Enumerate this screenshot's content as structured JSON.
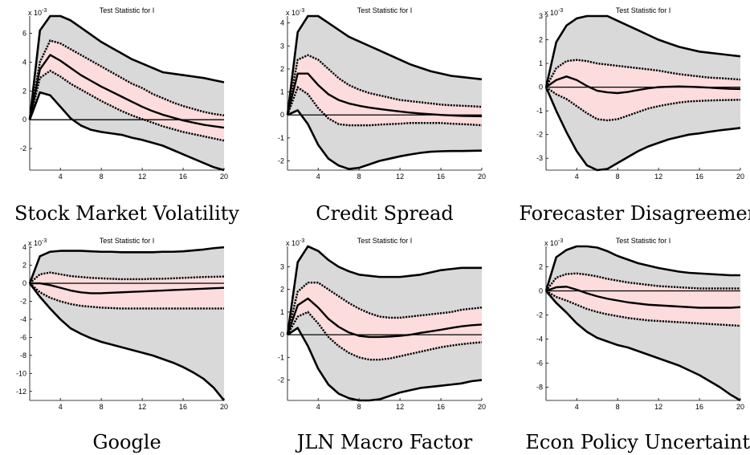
{
  "chart_data": [
    {
      "type": "line",
      "title": "Test Statistic for I",
      "caption": "Stock Market Volatility",
      "scale_label": "x 10",
      "scale_exp": "-3",
      "x": [
        1,
        2,
        3,
        4,
        5,
        6,
        7,
        8,
        9,
        10,
        11,
        12,
        13,
        14,
        15,
        16,
        17,
        18,
        19,
        20
      ],
      "xticks": [
        4,
        8,
        12,
        16,
        20
      ],
      "xlim": [
        1,
        20
      ],
      "yticks": [
        -2,
        0,
        2,
        4,
        6
      ],
      "ylim": [
        -3.5,
        7.2
      ],
      "series": [
        {
          "role": "outer_upper",
          "values": [
            0,
            6.2,
            7.2,
            7.2,
            6.9,
            6.4,
            5.9,
            5.4,
            5.0,
            4.6,
            4.2,
            3.9,
            3.6,
            3.3,
            3.2,
            3.1,
            3.0,
            2.9,
            2.75,
            2.6
          ]
        },
        {
          "role": "inner_upper",
          "values": [
            0,
            4.0,
            5.5,
            5.3,
            4.9,
            4.5,
            4.1,
            3.7,
            3.3,
            2.9,
            2.5,
            2.2,
            1.8,
            1.5,
            1.2,
            0.95,
            0.75,
            0.55,
            0.4,
            0.3
          ]
        },
        {
          "role": "median",
          "values": [
            0,
            3.5,
            4.5,
            4.1,
            3.6,
            3.1,
            2.7,
            2.3,
            1.95,
            1.6,
            1.25,
            0.9,
            0.6,
            0.35,
            0.15,
            -0.05,
            -0.2,
            -0.35,
            -0.45,
            -0.55
          ]
        },
        {
          "role": "inner_lower",
          "values": [
            0,
            2.9,
            3.4,
            3.0,
            2.5,
            2.1,
            1.7,
            1.3,
            0.95,
            0.6,
            0.3,
            0.05,
            -0.2,
            -0.45,
            -0.65,
            -0.85,
            -1.0,
            -1.15,
            -1.3,
            -1.45
          ]
        },
        {
          "role": "outer_lower",
          "values": [
            0,
            1.9,
            1.7,
            0.9,
            0.1,
            -0.4,
            -0.7,
            -0.85,
            -0.95,
            -1.05,
            -1.25,
            -1.4,
            -1.6,
            -1.8,
            -2.1,
            -2.4,
            -2.7,
            -3.0,
            -3.3,
            -3.5
          ]
        }
      ]
    },
    {
      "type": "line",
      "title": "Test Statistic for I",
      "caption": "Credit Spread",
      "scale_label": "x 10",
      "scale_exp": "-3",
      "x": [
        1,
        2,
        3,
        4,
        5,
        6,
        7,
        8,
        9,
        10,
        11,
        12,
        13,
        14,
        15,
        16,
        17,
        18,
        19,
        20
      ],
      "xticks": [
        4,
        8,
        12,
        16,
        20
      ],
      "xlim": [
        1,
        20
      ],
      "yticks": [
        -2,
        -1,
        0,
        1,
        2,
        3,
        4
      ],
      "ylim": [
        -2.4,
        4.3
      ],
      "series": [
        {
          "role": "outer_upper",
          "values": [
            0,
            3.6,
            4.3,
            4.3,
            4.0,
            3.7,
            3.4,
            3.2,
            3.0,
            2.8,
            2.6,
            2.4,
            2.2,
            2.05,
            1.9,
            1.8,
            1.7,
            1.65,
            1.6,
            1.55
          ]
        },
        {
          "role": "inner_upper",
          "values": [
            0,
            2.4,
            2.6,
            2.4,
            2.0,
            1.6,
            1.3,
            1.1,
            0.95,
            0.85,
            0.75,
            0.65,
            0.6,
            0.55,
            0.5,
            0.45,
            0.42,
            0.4,
            0.38,
            0.35
          ]
        },
        {
          "role": "median",
          "values": [
            0,
            1.8,
            1.8,
            1.3,
            0.9,
            0.65,
            0.5,
            0.4,
            0.32,
            0.26,
            0.2,
            0.15,
            0.1,
            0.06,
            0.03,
            0.0,
            -0.02,
            -0.04,
            -0.05,
            -0.06
          ]
        },
        {
          "role": "inner_lower",
          "values": [
            0,
            1.2,
            0.9,
            0.3,
            -0.15,
            -0.4,
            -0.45,
            -0.45,
            -0.45,
            -0.42,
            -0.4,
            -0.38,
            -0.35,
            -0.35,
            -0.35,
            -0.35,
            -0.38,
            -0.4,
            -0.42,
            -0.45
          ]
        },
        {
          "role": "outer_lower",
          "values": [
            0,
            0.2,
            -0.4,
            -1.3,
            -1.9,
            -2.2,
            -2.35,
            -2.3,
            -2.15,
            -2.0,
            -1.9,
            -1.8,
            -1.72,
            -1.65,
            -1.6,
            -1.58,
            -1.57,
            -1.57,
            -1.56,
            -1.55
          ]
        }
      ]
    },
    {
      "type": "line",
      "title": "Test Statistic for I",
      "caption": "Forecaster Disagreement",
      "scale_label": "x 10",
      "scale_exp": "-3",
      "x": [
        1,
        2,
        3,
        4,
        5,
        6,
        7,
        8,
        9,
        10,
        11,
        12,
        13,
        14,
        15,
        16,
        17,
        18,
        19,
        20
      ],
      "xticks": [
        4,
        8,
        12,
        16,
        20
      ],
      "xlim": [
        1,
        20
      ],
      "yticks": [
        -3,
        -2,
        -1,
        0,
        1,
        2,
        3
      ],
      "ylim": [
        -3.5,
        3.0
      ],
      "series": [
        {
          "role": "outer_upper",
          "values": [
            0,
            1.9,
            2.6,
            2.9,
            3.0,
            3.0,
            3.0,
            2.8,
            2.6,
            2.4,
            2.2,
            2.0,
            1.85,
            1.7,
            1.6,
            1.5,
            1.45,
            1.4,
            1.35,
            1.3
          ]
        },
        {
          "role": "inner_upper",
          "values": [
            0,
            0.8,
            1.1,
            1.15,
            1.1,
            1.0,
            0.95,
            0.9,
            0.85,
            0.8,
            0.75,
            0.7,
            0.62,
            0.55,
            0.5,
            0.45,
            0.4,
            0.38,
            0.35,
            0.32
          ]
        },
        {
          "role": "median",
          "values": [
            0,
            0.3,
            0.45,
            0.3,
            0.05,
            -0.15,
            -0.22,
            -0.25,
            -0.2,
            -0.12,
            -0.05,
            0.0,
            0.02,
            0.03,
            0.02,
            0.0,
            -0.02,
            -0.05,
            -0.07,
            -0.08
          ]
        },
        {
          "role": "inner_lower",
          "values": [
            0,
            -0.3,
            -0.5,
            -0.8,
            -1.1,
            -1.35,
            -1.4,
            -1.35,
            -1.2,
            -1.05,
            -0.9,
            -0.8,
            -0.72,
            -0.65,
            -0.6,
            -0.58,
            -0.56,
            -0.55,
            -0.54,
            -0.53
          ]
        },
        {
          "role": "outer_lower",
          "values": [
            0,
            -1.0,
            -1.9,
            -2.7,
            -3.3,
            -3.5,
            -3.45,
            -3.2,
            -2.95,
            -2.7,
            -2.5,
            -2.35,
            -2.2,
            -2.1,
            -2.0,
            -1.95,
            -1.88,
            -1.82,
            -1.77,
            -1.72
          ]
        }
      ]
    },
    {
      "type": "line",
      "title": "Test Statistic for I",
      "caption": "Google",
      "scale_label": "x 10",
      "scale_exp": "-3",
      "x": [
        1,
        2,
        3,
        4,
        5,
        6,
        7,
        8,
        9,
        10,
        11,
        12,
        13,
        14,
        15,
        16,
        17,
        18,
        19,
        20
      ],
      "xticks": [
        4,
        8,
        12,
        16,
        20
      ],
      "xlim": [
        1,
        20
      ],
      "yticks": [
        -12,
        -10,
        -8,
        -6,
        -4,
        -2,
        0,
        2,
        4
      ],
      "ylim": [
        -13,
        4.1
      ],
      "series": [
        {
          "role": "outer_upper",
          "values": [
            0,
            3.0,
            3.5,
            3.6,
            3.6,
            3.6,
            3.55,
            3.5,
            3.5,
            3.45,
            3.45,
            3.45,
            3.45,
            3.5,
            3.5,
            3.55,
            3.65,
            3.75,
            3.9,
            4.0
          ]
        },
        {
          "role": "inner_upper",
          "values": [
            0,
            1.0,
            1.2,
            1.0,
            0.8,
            0.7,
            0.6,
            0.55,
            0.5,
            0.45,
            0.45,
            0.45,
            0.5,
            0.5,
            0.55,
            0.6,
            0.65,
            0.7,
            0.72,
            0.75
          ]
        },
        {
          "role": "median",
          "values": [
            0,
            0.0,
            -0.2,
            -0.5,
            -0.8,
            -1.0,
            -1.1,
            -1.1,
            -1.05,
            -1.0,
            -0.95,
            -0.9,
            -0.85,
            -0.8,
            -0.75,
            -0.7,
            -0.65,
            -0.6,
            -0.55,
            -0.5
          ]
        },
        {
          "role": "inner_lower",
          "values": [
            0,
            -1.0,
            -1.6,
            -2.0,
            -2.3,
            -2.5,
            -2.6,
            -2.7,
            -2.75,
            -2.8,
            -2.8,
            -2.8,
            -2.8,
            -2.8,
            -2.8,
            -2.8,
            -2.8,
            -2.8,
            -2.8,
            -2.8
          ]
        },
        {
          "role": "outer_lower",
          "values": [
            0,
            -1.5,
            -2.8,
            -4.0,
            -5.0,
            -5.6,
            -6.1,
            -6.5,
            -6.8,
            -7.1,
            -7.4,
            -7.7,
            -8.0,
            -8.4,
            -8.8,
            -9.3,
            -9.9,
            -10.6,
            -11.6,
            -13.0
          ]
        }
      ]
    },
    {
      "type": "line",
      "title": "Test Statistic for I",
      "caption": "JLN Macro Factor",
      "scale_label": "x 10",
      "scale_exp": "-3",
      "x": [
        1,
        2,
        3,
        4,
        5,
        6,
        7,
        8,
        9,
        10,
        11,
        12,
        13,
        14,
        15,
        16,
        17,
        18,
        19,
        20
      ],
      "xticks": [
        4,
        8,
        12,
        16,
        20
      ],
      "xlim": [
        1,
        20
      ],
      "yticks": [
        -2,
        -1,
        0,
        1,
        2,
        3
      ],
      "ylim": [
        -2.9,
        3.9
      ],
      "series": [
        {
          "role": "outer_upper",
          "values": [
            0,
            3.2,
            3.9,
            3.7,
            3.3,
            3.0,
            2.8,
            2.65,
            2.6,
            2.55,
            2.55,
            2.55,
            2.6,
            2.65,
            2.75,
            2.85,
            2.9,
            2.95,
            2.95,
            2.95
          ]
        },
        {
          "role": "inner_upper",
          "values": [
            0,
            1.9,
            2.3,
            2.3,
            2.0,
            1.7,
            1.4,
            1.15,
            0.95,
            0.8,
            0.75,
            0.75,
            0.8,
            0.85,
            0.9,
            0.95,
            1.0,
            1.1,
            1.15,
            1.2
          ]
        },
        {
          "role": "median",
          "values": [
            0,
            1.3,
            1.6,
            1.2,
            0.7,
            0.35,
            0.1,
            -0.05,
            -0.1,
            -0.1,
            -0.08,
            -0.05,
            0.0,
            0.08,
            0.15,
            0.22,
            0.3,
            0.37,
            0.42,
            0.45
          ]
        },
        {
          "role": "inner_lower",
          "values": [
            0,
            0.8,
            1.0,
            0.5,
            -0.1,
            -0.5,
            -0.8,
            -1.0,
            -1.1,
            -1.1,
            -1.05,
            -0.95,
            -0.85,
            -0.75,
            -0.65,
            -0.55,
            -0.48,
            -0.42,
            -0.37,
            -0.33
          ]
        },
        {
          "role": "outer_lower",
          "values": [
            0,
            0.3,
            -0.5,
            -1.5,
            -2.2,
            -2.6,
            -2.8,
            -2.9,
            -2.9,
            -2.85,
            -2.7,
            -2.55,
            -2.45,
            -2.35,
            -2.3,
            -2.25,
            -2.2,
            -2.15,
            -2.05,
            -2.0
          ]
        }
      ]
    },
    {
      "type": "line",
      "title": "Test Statistic for I",
      "caption": "Econ Policy Uncertainty",
      "scale_label": "x 10",
      "scale_exp": "-3",
      "x": [
        1,
        2,
        3,
        4,
        5,
        6,
        7,
        8,
        9,
        10,
        11,
        12,
        13,
        14,
        15,
        16,
        17,
        18,
        19,
        20
      ],
      "xticks": [
        4,
        8,
        12,
        16,
        20
      ],
      "xlim": [
        1,
        20
      ],
      "yticks": [
        -8,
        -6,
        -4,
        -2,
        0,
        2
      ],
      "ylim": [
        -9.1,
        3.7
      ],
      "series": [
        {
          "role": "outer_upper",
          "values": [
            0,
            2.8,
            3.4,
            3.7,
            3.7,
            3.6,
            3.3,
            2.9,
            2.6,
            2.3,
            2.1,
            1.9,
            1.75,
            1.6,
            1.5,
            1.45,
            1.4,
            1.35,
            1.3,
            1.3
          ]
        },
        {
          "role": "inner_upper",
          "values": [
            0,
            1.1,
            1.4,
            1.45,
            1.35,
            1.2,
            1.0,
            0.85,
            0.7,
            0.6,
            0.5,
            0.4,
            0.35,
            0.3,
            0.25,
            0.2,
            0.2,
            0.2,
            0.2,
            0.2
          ]
        },
        {
          "role": "median",
          "values": [
            0,
            0.3,
            0.35,
            0.1,
            -0.2,
            -0.45,
            -0.65,
            -0.8,
            -0.95,
            -1.05,
            -1.15,
            -1.2,
            -1.25,
            -1.3,
            -1.35,
            -1.4,
            -1.4,
            -1.4,
            -1.4,
            -1.35
          ]
        },
        {
          "role": "inner_lower",
          "values": [
            0,
            -0.5,
            -0.8,
            -1.15,
            -1.5,
            -1.75,
            -1.95,
            -2.1,
            -2.25,
            -2.35,
            -2.45,
            -2.5,
            -2.55,
            -2.6,
            -2.65,
            -2.7,
            -2.75,
            -2.8,
            -2.85,
            -2.9
          ]
        },
        {
          "role": "outer_lower",
          "values": [
            0,
            -1.0,
            -1.8,
            -2.7,
            -3.4,
            -3.9,
            -4.2,
            -4.5,
            -4.7,
            -5.0,
            -5.3,
            -5.6,
            -5.9,
            -6.2,
            -6.6,
            -7.0,
            -7.5,
            -8.0,
            -8.6,
            -9.1
          ]
        }
      ]
    }
  ],
  "colors": {
    "outer_band": "#d9d9d9",
    "inner_band": "#fcdcdc",
    "line": "#000000"
  }
}
